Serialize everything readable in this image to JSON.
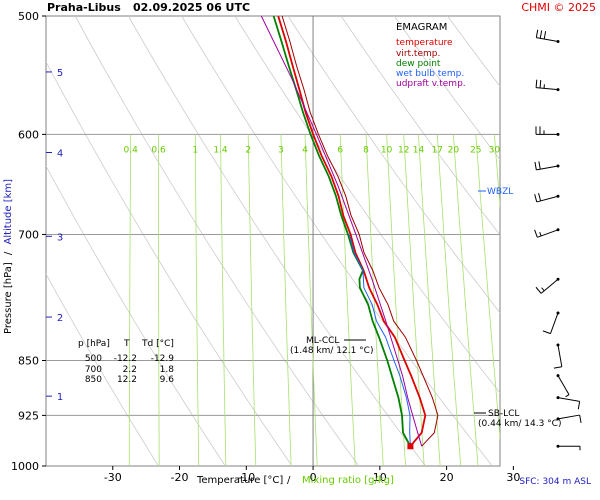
{
  "header": {
    "station": "Praha-Libus",
    "datetime": "02.09.2025 06 UTC",
    "credit": "CHMI © 2025"
  },
  "footer": {
    "sfc": "SFC: 304 m ASL"
  },
  "legend": {
    "title": "EMAGRAM",
    "items": [
      {
        "label": "temperature",
        "color": "#e00000"
      },
      {
        "label": "virt.temp.",
        "color": "#a00000"
      },
      {
        "label": "dew point",
        "color": "#008000"
      },
      {
        "label": "wet bulb temp.",
        "color": "#2060ff"
      },
      {
        "label": "udpraft v.temp.",
        "color": "#a000a0"
      }
    ]
  },
  "table": {
    "header": [
      "p [hPa]",
      "T",
      "Td [°C]"
    ],
    "rows": [
      [
        "500",
        "-12.2",
        "-12.9"
      ],
      [
        "700",
        "2.2",
        "1.8"
      ],
      [
        "850",
        "12.2",
        "9.6"
      ]
    ]
  },
  "annotations": {
    "ml_ccl_title": "ML-CCL",
    "ml_ccl_value": "(1.48 km/ 12.1 °C)",
    "sb_lcl_title": "SB-LCL",
    "sb_lcl_value": "(0.44 km/ 14.3 °C)",
    "wbzl": "WBZL"
  },
  "chart_data": {
    "type": "line",
    "xlabel": "Temperature [°C]",
    "xlabel_extra": "Mixing ratio [g/kg]",
    "ylabel_left": "Pressure [hPa]",
    "ylabel_sep": "/",
    "ylabel_right": "Altitude [km]",
    "x_range_top_c": [
      -48,
      22
    ],
    "x_range_bottom_c": [
      -40,
      28
    ],
    "y_range_hpa": [
      500,
      1000
    ],
    "y_scale": "log",
    "x_ticks": [
      -30,
      -20,
      -10,
      0,
      10,
      20,
      30
    ],
    "y_ticks": [
      500,
      600,
      700,
      850,
      925,
      1000
    ],
    "altitude_ticks": [
      {
        "km": 5,
        "p": 545
      },
      {
        "km": 4,
        "p": 617
      },
      {
        "km": 3,
        "p": 702
      },
      {
        "km": 2,
        "p": 795
      },
      {
        "km": 1,
        "p": 898
      }
    ],
    "mixing_ratio_lines": [
      0.4,
      0.6,
      1,
      1.4,
      2,
      3,
      4,
      6,
      8,
      10,
      12,
      14,
      17,
      20,
      25,
      30
    ],
    "series": [
      {
        "name": "temperature",
        "color": "#e00000",
        "points": [
          [
            970,
            14.3
          ],
          [
            950,
            15.8
          ],
          [
            925,
            16.1
          ],
          [
            900,
            15.0
          ],
          [
            870,
            13.4
          ],
          [
            850,
            12.2
          ],
          [
            820,
            10.4
          ],
          [
            800,
            8.5
          ],
          [
            780,
            7.3
          ],
          [
            760,
            5.8
          ],
          [
            740,
            4.7
          ],
          [
            720,
            3.2
          ],
          [
            700,
            2.2
          ],
          [
            680,
            0.8
          ],
          [
            660,
            -0.2
          ],
          [
            640,
            -1.6
          ],
          [
            620,
            -3.4
          ],
          [
            600,
            -5.0
          ],
          [
            580,
            -6.5
          ],
          [
            560,
            -7.8
          ],
          [
            540,
            -9.2
          ],
          [
            520,
            -10.6
          ],
          [
            500,
            -12.2
          ]
        ]
      },
      {
        "name": "virt.temp.",
        "color": "#a00000",
        "points": [
          [
            970,
            16.0
          ],
          [
            950,
            17.7
          ],
          [
            925,
            18.0
          ],
          [
            900,
            16.9
          ],
          [
            870,
            15.2
          ],
          [
            850,
            14.0
          ],
          [
            820,
            12.0
          ],
          [
            800,
            10.0
          ],
          [
            780,
            8.9
          ],
          [
            760,
            7.3
          ],
          [
            740,
            6.1
          ],
          [
            720,
            4.5
          ],
          [
            700,
            3.5
          ],
          [
            680,
            2.0
          ],
          [
            660,
            0.9
          ],
          [
            640,
            -0.6
          ],
          [
            620,
            -2.5
          ],
          [
            600,
            -4.2
          ],
          [
            580,
            -5.8
          ],
          [
            560,
            -7.1
          ],
          [
            540,
            -8.6
          ],
          [
            520,
            -10.0
          ],
          [
            500,
            -11.6
          ]
        ]
      },
      {
        "name": "dew point",
        "color": "#008000",
        "points": [
          [
            970,
            14.3
          ],
          [
            950,
            13.0
          ],
          [
            925,
            12.6
          ],
          [
            900,
            11.8
          ],
          [
            870,
            10.5
          ],
          [
            850,
            9.6
          ],
          [
            820,
            8.0
          ],
          [
            800,
            6.8
          ],
          [
            780,
            5.9
          ],
          [
            760,
            4.4
          ],
          [
            750,
            4.2
          ],
          [
            740,
            4.6
          ],
          [
            720,
            2.9
          ],
          [
            700,
            1.8
          ],
          [
            680,
            0.5
          ],
          [
            660,
            -0.6
          ],
          [
            640,
            -2.0
          ],
          [
            620,
            -3.8
          ],
          [
            600,
            -5.4
          ],
          [
            580,
            -6.9
          ],
          [
            560,
            -8.3
          ],
          [
            540,
            -9.8
          ],
          [
            520,
            -11.3
          ],
          [
            500,
            -12.9
          ]
        ]
      },
      {
        "name": "wet bulb temp.",
        "color": "#2060ff",
        "points": [
          [
            970,
            14.3
          ],
          [
            950,
            14.0
          ],
          [
            925,
            13.8
          ],
          [
            900,
            13.0
          ],
          [
            870,
            11.7
          ],
          [
            850,
            10.6
          ],
          [
            820,
            9.0
          ],
          [
            800,
            7.4
          ],
          [
            780,
            6.5
          ],
          [
            760,
            5.0
          ],
          [
            740,
            4.6
          ],
          [
            720,
            3.0
          ],
          [
            700,
            2.0
          ]
        ]
      },
      {
        "name": "udpraft v.temp.",
        "color": "#a000a0",
        "points": [
          [
            970,
            16.0
          ],
          [
            950,
            15.2
          ],
          [
            925,
            14.2
          ],
          [
            900,
            13.2
          ],
          [
            870,
            12.1
          ],
          [
            850,
            11.2
          ],
          [
            800,
            8.8
          ],
          [
            750,
            6.1
          ],
          [
            700,
            3.0
          ],
          [
            650,
            -0.4
          ],
          [
            600,
            -4.5
          ],
          [
            550,
            -9.2
          ],
          [
            500,
            -14.8
          ]
        ]
      }
    ],
    "wind_barbs": [
      {
        "p": 520,
        "dir": 280,
        "spd": 30
      },
      {
        "p": 560,
        "dir": 275,
        "spd": 25
      },
      {
        "p": 600,
        "dir": 270,
        "spd": 25
      },
      {
        "p": 630,
        "dir": 260,
        "spd": 20
      },
      {
        "p": 660,
        "dir": 255,
        "spd": 20
      },
      {
        "p": 695,
        "dir": 250,
        "spd": 15
      },
      {
        "p": 750,
        "dir": 230,
        "spd": 15
      },
      {
        "p": 790,
        "dir": 200,
        "spd": 10
      },
      {
        "p": 830,
        "dir": 170,
        "spd": 10
      },
      {
        "p": 870,
        "dir": 150,
        "spd": 5
      },
      {
        "p": 900,
        "dir": 100,
        "spd": 10
      },
      {
        "p": 930,
        "dir": 80,
        "spd": 10
      },
      {
        "p": 970,
        "dir": 90,
        "spd": 5
      }
    ]
  }
}
